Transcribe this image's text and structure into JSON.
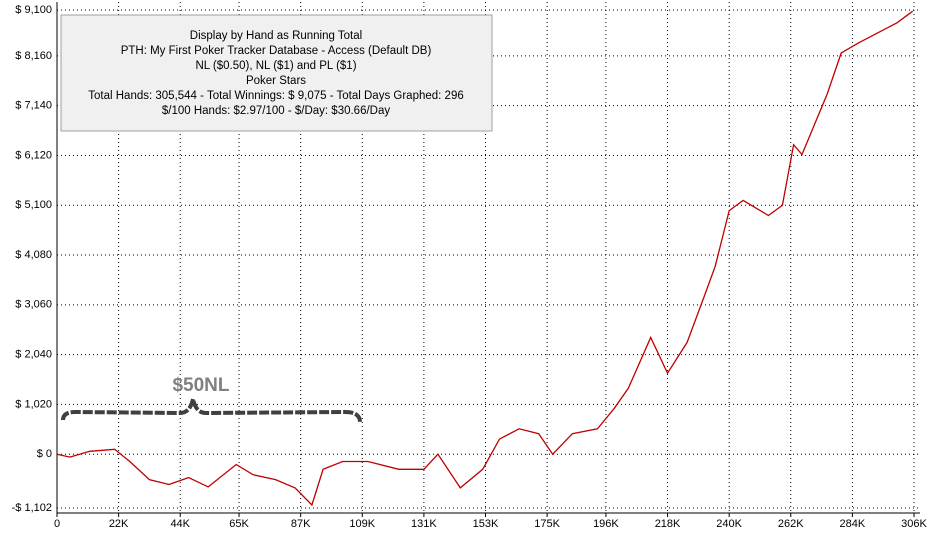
{
  "chart_data": {
    "type": "line",
    "annotations": {
      "info_box": [
        "Display by Hand as Running Total",
        "PTH: My First Poker Tracker Database - Access (Default DB)",
        "NL ($0.50), NL ($1) and PL ($1)",
        "Poker Stars",
        "Total Hands: 305,544 - Total Winnings: $ 9,075 - Total Days Graphed: 296",
        "$/100 Hands: $2.97/100 - $/Day: $30.66/Day"
      ],
      "stake_label": "$50NL"
    },
    "x": [
      0,
      4600,
      11700,
      20600,
      26000,
      33000,
      40000,
      47000,
      54000,
      64000,
      70000,
      78000,
      85000,
      91000,
      95000,
      102000,
      111000,
      122000,
      131000,
      136000,
      144000,
      152000,
      158000,
      165000,
      172000,
      177000,
      184000,
      193000,
      199000,
      204000,
      212000,
      218000,
      225000,
      231000,
      235000,
      240000,
      245000,
      254000,
      259000,
      263000,
      266000,
      275000,
      280000,
      286000,
      293000,
      300000,
      305544
    ],
    "series": [
      {
        "color": "#c00000",
        "values": [
          0,
          -60,
          60,
          100,
          -150,
          -520,
          -620,
          -480,
          -670,
          -210,
          -420,
          -520,
          -690,
          -1040,
          -310,
          -150,
          -150,
          -310,
          -310,
          0,
          -690,
          -310,
          310,
          520,
          420,
          0,
          420,
          520,
          940,
          1350,
          2390,
          1660,
          2290,
          3220,
          3850,
          4990,
          5200,
          4890,
          5100,
          6340,
          6140,
          7380,
          8220,
          8420,
          8630,
          8840,
          9075
        ]
      }
    ],
    "xlim": [
      0,
      306000
    ],
    "ylim": [
      -1102,
      9100
    ],
    "xticks": [
      0,
      {
        "value": 22000,
        "label": "22K"
      },
      {
        "value": 44000,
        "label": "44K"
      },
      {
        "value": 65000,
        "label": "65K"
      },
      {
        "value": 87000,
        "label": "87K"
      },
      {
        "value": 109000,
        "label": "109K"
      },
      {
        "value": 131000,
        "label": "131K"
      },
      {
        "value": 153000,
        "label": "153K"
      },
      {
        "value": 175000,
        "label": "175K"
      },
      {
        "value": 196000,
        "label": "196K"
      },
      {
        "value": 218000,
        "label": "218K"
      },
      {
        "value": 240000,
        "label": "240K"
      },
      {
        "value": 262000,
        "label": "262K"
      },
      {
        "value": 284000,
        "label": "284K"
      },
      {
        "value": 306000,
        "label": "306K"
      }
    ],
    "yticks": [
      {
        "value": -1102,
        "label": "-$ 1,102"
      },
      {
        "value": 0,
        "label": "$ 0"
      },
      {
        "value": 1020,
        "label": "$ 1,020"
      },
      {
        "value": 2040,
        "label": "$ 2,040"
      },
      {
        "value": 3060,
        "label": "$ 3,060"
      },
      {
        "value": 4080,
        "label": "$ 4,080"
      },
      {
        "value": 5100,
        "label": "$ 5,100"
      },
      {
        "value": 6120,
        "label": "$ 6,120"
      },
      {
        "value": 7140,
        "label": "$ 7,140"
      },
      {
        "value": 8160,
        "label": "$ 8,160"
      },
      {
        "value": 9100,
        "label": "$ 9,100"
      }
    ],
    "grid": true
  }
}
